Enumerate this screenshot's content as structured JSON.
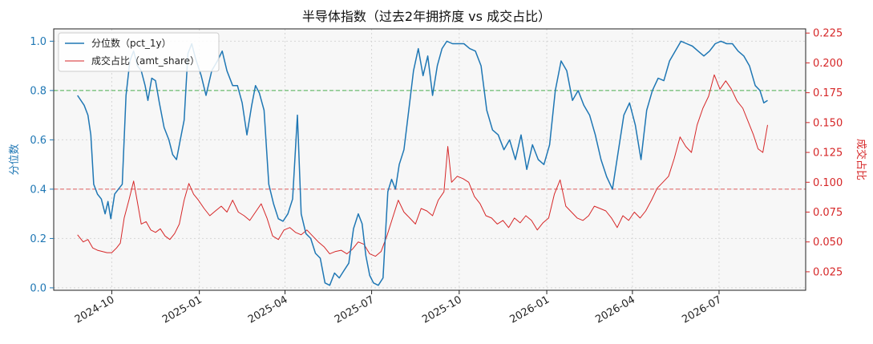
{
  "chart_data": {
    "type": "line",
    "title": "半导体指数（过去2年拥挤度 vs 成交占比）",
    "xlabel": "",
    "ylabel_left": "分位数",
    "ylabel_right": "成交占比",
    "x_range": [
      "2024-08-01",
      "2026-09-30"
    ],
    "ylim_left": [
      -0.01,
      1.05
    ],
    "ylim_right": [
      0.0095,
      0.2285
    ],
    "x_ticks": [
      "2024-10",
      "2025-01",
      "2025-04",
      "2025-07",
      "2025-10",
      "2026-01",
      "2026-04",
      "2026-07"
    ],
    "y_ticks_left": [
      "0.0",
      "0.2",
      "0.4",
      "0.6",
      "0.8",
      "1.0"
    ],
    "y_ticks_right": [
      "0.025",
      "0.050",
      "0.075",
      "0.100",
      "0.125",
      "0.150",
      "0.175",
      "0.200",
      "0.225"
    ],
    "grid": true,
    "legend_position": "top-left",
    "reference_lines": [
      {
        "axis": "left",
        "value": 0.8,
        "style": "dashed",
        "color": "#4caf50"
      },
      {
        "axis": "left",
        "value": 0.4,
        "style": "dashed",
        "color": "#e06060"
      }
    ],
    "series": [
      {
        "name": "分位数（pct_1y）",
        "axis": "left",
        "color": "#1f77b4",
        "points": [
          [
            "2024-08-26",
            0.78
          ],
          [
            "2024-09-02",
            0.74
          ],
          [
            "2024-09-06",
            0.7
          ],
          [
            "2024-09-09",
            0.62
          ],
          [
            "2024-09-12",
            0.42
          ],
          [
            "2024-09-16",
            0.38
          ],
          [
            "2024-09-20",
            0.36
          ],
          [
            "2024-09-24",
            0.3
          ],
          [
            "2024-09-27",
            0.35
          ],
          [
            "2024-09-30",
            0.28
          ],
          [
            "2024-10-04",
            0.38
          ],
          [
            "2024-10-08",
            0.4
          ],
          [
            "2024-10-12",
            0.42
          ],
          [
            "2024-10-16",
            0.78
          ],
          [
            "2024-10-20",
            0.92
          ],
          [
            "2024-10-24",
            0.96
          ],
          [
            "2024-10-28",
            0.9
          ],
          [
            "2024-11-01",
            0.88
          ],
          [
            "2024-11-05",
            0.82
          ],
          [
            "2024-11-08",
            0.76
          ],
          [
            "2024-11-12",
            0.85
          ],
          [
            "2024-11-16",
            0.84
          ],
          [
            "2024-11-20",
            0.75
          ],
          [
            "2024-11-25",
            0.65
          ],
          [
            "2024-11-30",
            0.6
          ],
          [
            "2024-12-04",
            0.54
          ],
          [
            "2024-12-08",
            0.52
          ],
          [
            "2024-12-12",
            0.6
          ],
          [
            "2024-12-16",
            0.68
          ],
          [
            "2024-12-20",
            0.95
          ],
          [
            "2024-12-24",
            0.99
          ],
          [
            "2024-12-28",
            0.93
          ],
          [
            "2025-01-03",
            0.86
          ],
          [
            "2025-01-08",
            0.78
          ],
          [
            "2025-01-14",
            0.88
          ],
          [
            "2025-01-20",
            0.92
          ],
          [
            "2025-01-25",
            0.96
          ],
          [
            "2025-01-30",
            0.88
          ],
          [
            "2025-02-05",
            0.82
          ],
          [
            "2025-02-10",
            0.82
          ],
          [
            "2025-02-15",
            0.75
          ],
          [
            "2025-02-20",
            0.62
          ],
          [
            "2025-02-25",
            0.74
          ],
          [
            "2025-03-01",
            0.82
          ],
          [
            "2025-03-05",
            0.79
          ],
          [
            "2025-03-10",
            0.72
          ],
          [
            "2025-03-15",
            0.42
          ],
          [
            "2025-03-20",
            0.34
          ],
          [
            "2025-03-25",
            0.28
          ],
          [
            "2025-03-30",
            0.27
          ],
          [
            "2025-04-04",
            0.3
          ],
          [
            "2025-04-09",
            0.36
          ],
          [
            "2025-04-14",
            0.7
          ],
          [
            "2025-04-18",
            0.3
          ],
          [
            "2025-04-23",
            0.22
          ],
          [
            "2025-04-28",
            0.2
          ],
          [
            "2025-05-03",
            0.14
          ],
          [
            "2025-05-08",
            0.12
          ],
          [
            "2025-05-13",
            0.02
          ],
          [
            "2025-05-18",
            0.01
          ],
          [
            "2025-05-23",
            0.06
          ],
          [
            "2025-05-28",
            0.04
          ],
          [
            "2025-06-02",
            0.07
          ],
          [
            "2025-06-07",
            0.1
          ],
          [
            "2025-06-12",
            0.24
          ],
          [
            "2025-06-17",
            0.3
          ],
          [
            "2025-06-21",
            0.26
          ],
          [
            "2025-06-25",
            0.13
          ],
          [
            "2025-06-29",
            0.05
          ],
          [
            "2025-07-03",
            0.02
          ],
          [
            "2025-07-08",
            0.01
          ],
          [
            "2025-07-13",
            0.04
          ],
          [
            "2025-07-18",
            0.39
          ],
          [
            "2025-07-22",
            0.44
          ],
          [
            "2025-07-26",
            0.4
          ],
          [
            "2025-07-30",
            0.5
          ],
          [
            "2025-08-04",
            0.56
          ],
          [
            "2025-08-09",
            0.72
          ],
          [
            "2025-08-14",
            0.88
          ],
          [
            "2025-08-19",
            0.97
          ],
          [
            "2025-08-24",
            0.86
          ],
          [
            "2025-08-29",
            0.94
          ],
          [
            "2025-09-03",
            0.78
          ],
          [
            "2025-09-08",
            0.9
          ],
          [
            "2025-09-13",
            0.97
          ],
          [
            "2025-09-18",
            1.0
          ],
          [
            "2025-09-24",
            0.99
          ],
          [
            "2025-09-30",
            0.99
          ],
          [
            "2025-10-06",
            0.99
          ],
          [
            "2025-10-12",
            0.97
          ],
          [
            "2025-10-18",
            0.96
          ],
          [
            "2025-10-24",
            0.9
          ],
          [
            "2025-10-30",
            0.72
          ],
          [
            "2025-11-05",
            0.64
          ],
          [
            "2025-11-11",
            0.62
          ],
          [
            "2025-11-17",
            0.56
          ],
          [
            "2025-11-23",
            0.6
          ],
          [
            "2025-11-29",
            0.52
          ],
          [
            "2025-12-05",
            0.62
          ],
          [
            "2025-12-11",
            0.48
          ],
          [
            "2025-12-17",
            0.58
          ],
          [
            "2025-12-23",
            0.52
          ],
          [
            "2025-12-29",
            0.5
          ],
          [
            "2026-01-04",
            0.58
          ],
          [
            "2026-01-10",
            0.8
          ],
          [
            "2026-01-16",
            0.92
          ],
          [
            "2026-01-22",
            0.88
          ],
          [
            "2026-01-28",
            0.76
          ],
          [
            "2026-02-03",
            0.8
          ],
          [
            "2026-02-09",
            0.74
          ],
          [
            "2026-02-15",
            0.7
          ],
          [
            "2026-02-21",
            0.62
          ],
          [
            "2026-02-27",
            0.52
          ],
          [
            "2026-03-05",
            0.45
          ],
          [
            "2026-03-11",
            0.4
          ],
          [
            "2026-03-17",
            0.55
          ],
          [
            "2026-03-23",
            0.7
          ],
          [
            "2026-03-29",
            0.75
          ],
          [
            "2026-04-04",
            0.66
          ],
          [
            "2026-04-10",
            0.52
          ],
          [
            "2026-04-16",
            0.72
          ],
          [
            "2026-04-22",
            0.8
          ],
          [
            "2026-04-28",
            0.85
          ],
          [
            "2026-05-04",
            0.84
          ],
          [
            "2026-05-10",
            0.92
          ],
          [
            "2026-05-16",
            0.96
          ],
          [
            "2026-05-22",
            1.0
          ],
          [
            "2026-05-28",
            0.99
          ],
          [
            "2026-06-03",
            0.98
          ],
          [
            "2026-06-09",
            0.96
          ],
          [
            "2026-06-15",
            0.94
          ],
          [
            "2026-06-21",
            0.96
          ],
          [
            "2026-06-27",
            0.99
          ],
          [
            "2026-07-03",
            1.0
          ],
          [
            "2026-07-09",
            0.99
          ],
          [
            "2026-07-15",
            0.99
          ],
          [
            "2026-07-21",
            0.96
          ],
          [
            "2026-07-27",
            0.94
          ],
          [
            "2026-08-02",
            0.9
          ],
          [
            "2026-08-08",
            0.82
          ],
          [
            "2026-08-13",
            0.8
          ],
          [
            "2026-08-17",
            0.75
          ],
          [
            "2026-08-21",
            0.76
          ]
        ]
      },
      {
        "name": "成交占比（amt_share）",
        "axis": "right",
        "color": "#d62728",
        "points": [
          [
            "2024-08-26",
            0.056
          ],
          [
            "2024-09-01",
            0.05
          ],
          [
            "2024-09-06",
            0.052
          ],
          [
            "2024-09-11",
            0.045
          ],
          [
            "2024-09-16",
            0.043
          ],
          [
            "2024-09-21",
            0.042
          ],
          [
            "2024-09-26",
            0.041
          ],
          [
            "2024-10-01",
            0.041
          ],
          [
            "2024-10-06",
            0.045
          ],
          [
            "2024-10-10",
            0.049
          ],
          [
            "2024-10-14",
            0.07
          ],
          [
            "2024-10-19",
            0.085
          ],
          [
            "2024-10-24",
            0.101
          ],
          [
            "2024-10-28",
            0.083
          ],
          [
            "2024-11-01",
            0.065
          ],
          [
            "2024-11-06",
            0.067
          ],
          [
            "2024-11-11",
            0.06
          ],
          [
            "2024-11-16",
            0.058
          ],
          [
            "2024-11-21",
            0.061
          ],
          [
            "2024-11-26",
            0.055
          ],
          [
            "2024-12-01",
            0.052
          ],
          [
            "2024-12-06",
            0.057
          ],
          [
            "2024-12-11",
            0.065
          ],
          [
            "2024-12-16",
            0.085
          ],
          [
            "2024-12-21",
            0.099
          ],
          [
            "2024-12-26",
            0.09
          ],
          [
            "2024-12-31",
            0.085
          ],
          [
            "2025-01-06",
            0.078
          ],
          [
            "2025-01-12",
            0.072
          ],
          [
            "2025-01-18",
            0.076
          ],
          [
            "2025-01-24",
            0.08
          ],
          [
            "2025-01-30",
            0.075
          ],
          [
            "2025-02-05",
            0.085
          ],
          [
            "2025-02-11",
            0.075
          ],
          [
            "2025-02-17",
            0.072
          ],
          [
            "2025-02-23",
            0.068
          ],
          [
            "2025-03-01",
            0.075
          ],
          [
            "2025-03-07",
            0.082
          ],
          [
            "2025-03-13",
            0.07
          ],
          [
            "2025-03-19",
            0.055
          ],
          [
            "2025-03-25",
            0.052
          ],
          [
            "2025-03-31",
            0.06
          ],
          [
            "2025-04-06",
            0.062
          ],
          [
            "2025-04-12",
            0.058
          ],
          [
            "2025-04-18",
            0.056
          ],
          [
            "2025-04-24",
            0.06
          ],
          [
            "2025-04-30",
            0.055
          ],
          [
            "2025-05-06",
            0.05
          ],
          [
            "2025-05-12",
            0.046
          ],
          [
            "2025-05-18",
            0.04
          ],
          [
            "2025-05-24",
            0.042
          ],
          [
            "2025-05-30",
            0.043
          ],
          [
            "2025-06-05",
            0.04
          ],
          [
            "2025-06-11",
            0.044
          ],
          [
            "2025-06-17",
            0.05
          ],
          [
            "2025-06-23",
            0.048
          ],
          [
            "2025-06-29",
            0.04
          ],
          [
            "2025-07-05",
            0.038
          ],
          [
            "2025-07-11",
            0.042
          ],
          [
            "2025-07-17",
            0.055
          ],
          [
            "2025-07-23",
            0.07
          ],
          [
            "2025-07-29",
            0.085
          ],
          [
            "2025-08-04",
            0.075
          ],
          [
            "2025-08-10",
            0.07
          ],
          [
            "2025-08-16",
            0.065
          ],
          [
            "2025-08-22",
            0.078
          ],
          [
            "2025-08-28",
            0.076
          ],
          [
            "2025-09-03",
            0.072
          ],
          [
            "2025-09-09",
            0.085
          ],
          [
            "2025-09-15",
            0.092
          ],
          [
            "2025-09-19",
            0.13
          ],
          [
            "2025-09-23",
            0.1
          ],
          [
            "2025-09-29",
            0.105
          ],
          [
            "2025-10-05",
            0.103
          ],
          [
            "2025-10-11",
            0.1
          ],
          [
            "2025-10-17",
            0.088
          ],
          [
            "2025-10-23",
            0.082
          ],
          [
            "2025-10-29",
            0.072
          ],
          [
            "2025-11-04",
            0.07
          ],
          [
            "2025-11-10",
            0.065
          ],
          [
            "2025-11-16",
            0.068
          ],
          [
            "2025-11-22",
            0.062
          ],
          [
            "2025-11-28",
            0.07
          ],
          [
            "2025-12-04",
            0.066
          ],
          [
            "2025-12-10",
            0.072
          ],
          [
            "2025-12-16",
            0.068
          ],
          [
            "2025-12-22",
            0.06
          ],
          [
            "2025-12-28",
            0.066
          ],
          [
            "2026-01-03",
            0.07
          ],
          [
            "2026-01-09",
            0.09
          ],
          [
            "2026-01-15",
            0.102
          ],
          [
            "2026-01-21",
            0.08
          ],
          [
            "2026-01-27",
            0.075
          ],
          [
            "2026-02-02",
            0.07
          ],
          [
            "2026-02-08",
            0.068
          ],
          [
            "2026-02-14",
            0.072
          ],
          [
            "2026-02-20",
            0.08
          ],
          [
            "2026-02-26",
            0.078
          ],
          [
            "2026-03-04",
            0.076
          ],
          [
            "2026-03-10",
            0.07
          ],
          [
            "2026-03-16",
            0.062
          ],
          [
            "2026-03-22",
            0.072
          ],
          [
            "2026-03-28",
            0.068
          ],
          [
            "2026-04-03",
            0.075
          ],
          [
            "2026-04-09",
            0.07
          ],
          [
            "2026-04-15",
            0.076
          ],
          [
            "2026-04-21",
            0.085
          ],
          [
            "2026-04-27",
            0.095
          ],
          [
            "2026-05-03",
            0.1
          ],
          [
            "2026-05-09",
            0.105
          ],
          [
            "2026-05-15",
            0.12
          ],
          [
            "2026-05-21",
            0.138
          ],
          [
            "2026-05-27",
            0.13
          ],
          [
            "2026-06-02",
            0.125
          ],
          [
            "2026-06-08",
            0.148
          ],
          [
            "2026-06-14",
            0.162
          ],
          [
            "2026-06-20",
            0.172
          ],
          [
            "2026-06-26",
            0.19
          ],
          [
            "2026-07-02",
            0.178
          ],
          [
            "2026-07-08",
            0.185
          ],
          [
            "2026-07-14",
            0.178
          ],
          [
            "2026-07-20",
            0.168
          ],
          [
            "2026-07-26",
            0.162
          ],
          [
            "2026-08-01",
            0.15
          ],
          [
            "2026-08-06",
            0.14
          ],
          [
            "2026-08-11",
            0.128
          ],
          [
            "2026-08-16",
            0.125
          ],
          [
            "2026-08-21",
            0.148
          ]
        ]
      }
    ]
  }
}
